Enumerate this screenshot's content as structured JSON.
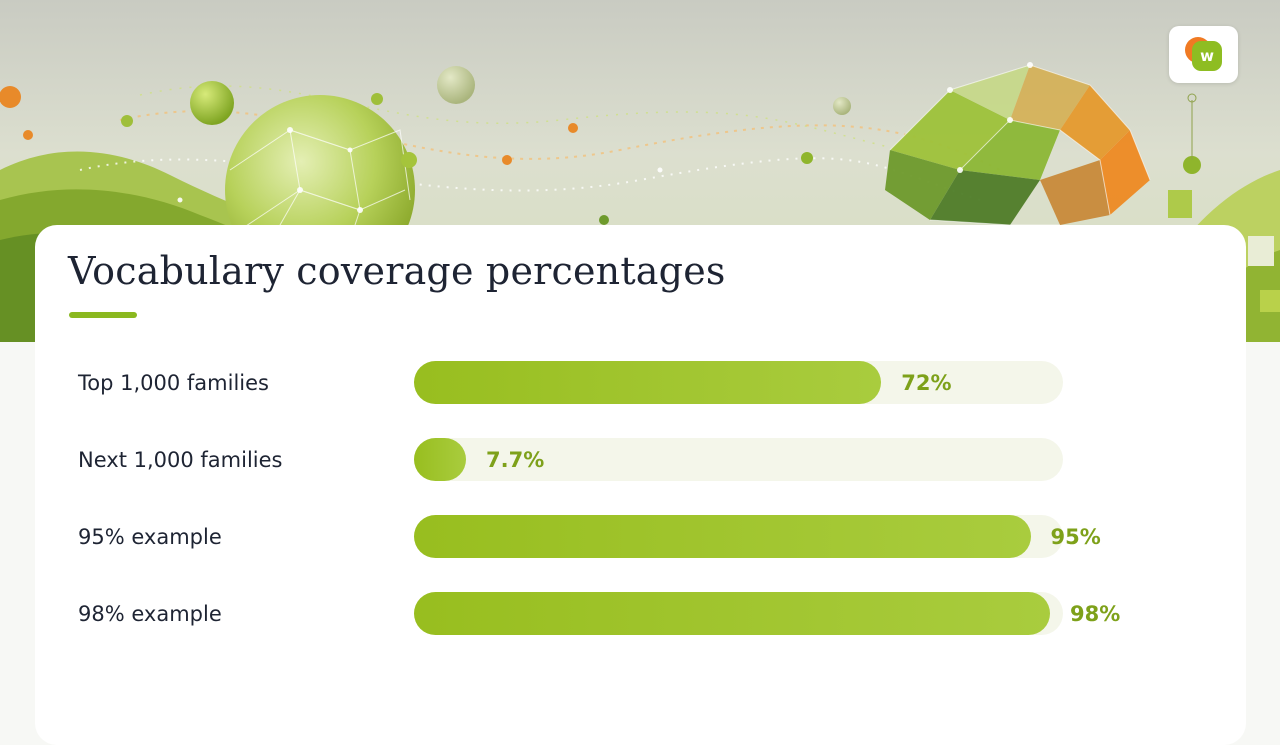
{
  "slide": {
    "title": "Vocabulary coverage percentages",
    "logo_letter": "w"
  },
  "colors": {
    "accent": "#8ab81f",
    "bar_fill": "#a3c632",
    "bar_track": "#f4f6ea",
    "value_text": "#7ea11a",
    "title_text": "#1e2433",
    "logo_orange": "#f07a23",
    "logo_green": "#8ebd22"
  },
  "chart_data": {
    "type": "bar",
    "orientation": "horizontal",
    "categories": [
      "Top 1,000 families",
      "Next 1,000 families",
      "95% example",
      "98% example"
    ],
    "values": [
      72,
      7.7,
      95,
      98
    ],
    "value_labels": [
      "72%",
      "7.7%",
      "95%",
      "98%"
    ],
    "xlim": [
      0,
      100
    ],
    "title": "Vocabulary coverage percentages",
    "xlabel": "",
    "ylabel": "",
    "grid": false,
    "legend": "none"
  }
}
